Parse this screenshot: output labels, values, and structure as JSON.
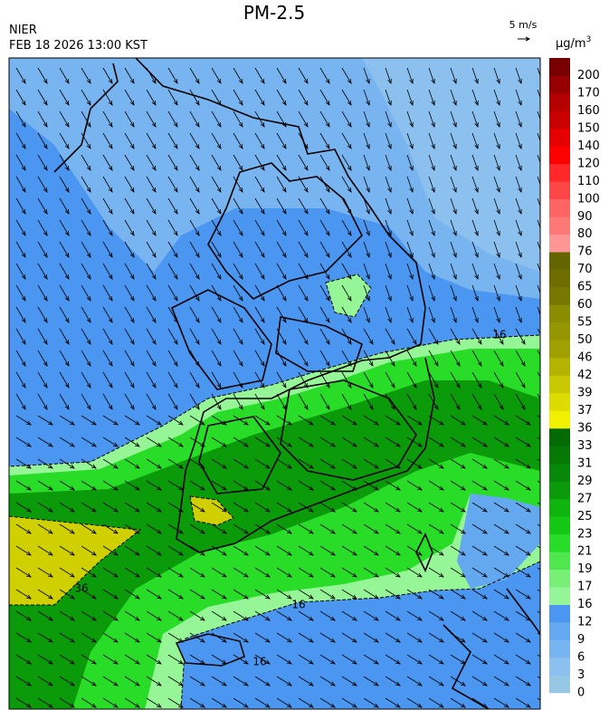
{
  "header": {
    "title": "PM-2.5",
    "agency": "NIER",
    "datetime": "FEB 18 2026 13:00 KST",
    "wind_scale": "5 m/s"
  },
  "colorbar": {
    "unit": "μg/m",
    "unit_exponent": "3",
    "levels": [
      0,
      3,
      6,
      9,
      12,
      16,
      17,
      19,
      21,
      23,
      25,
      27,
      29,
      31,
      33,
      36,
      37,
      39,
      42,
      46,
      50,
      55,
      60,
      65,
      70,
      76,
      80,
      90,
      100,
      110,
      120,
      140,
      150,
      160,
      170,
      200
    ],
    "colors": [
      "#96c8e6",
      "#8cc0ee",
      "#78b4f0",
      "#64a8f0",
      "#4a96f0",
      "#96f596",
      "#78f078",
      "#50e650",
      "#28dc28",
      "#14c814",
      "#0fb40f",
      "#0a9a0a",
      "#088808",
      "#067806",
      "#046a04",
      "#f0f000",
      "#dcdc00",
      "#c8c800",
      "#b4b400",
      "#a0a000",
      "#969600",
      "#8c8c00",
      "#787800",
      "#6e6e00",
      "#646400",
      "#ff9696",
      "#ff7878",
      "#ff6464",
      "#ff4646",
      "#ff2828",
      "#ff0000",
      "#e60000",
      "#c80000",
      "#b40000",
      "#960000",
      "#780000"
    ]
  },
  "map": {
    "contour_labels": [
      "16",
      "16",
      "16",
      "36"
    ]
  }
}
